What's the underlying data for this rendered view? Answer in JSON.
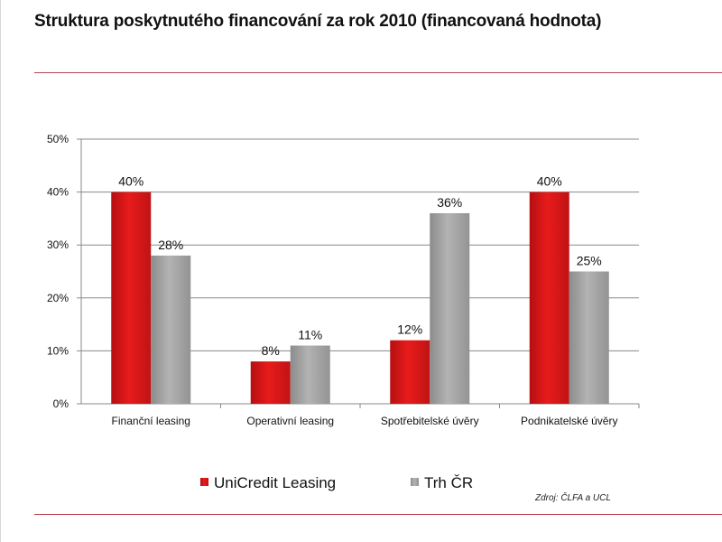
{
  "title": "Struktura poskytnutého financování za rok 2010 (financovaná hodnota)",
  "source": "Zdroj: ČLFA a UCL",
  "colors": {
    "accent_rule": "#b8434f",
    "unicredit_bar": "#e01717",
    "trh_bar": "#a9a9a9"
  },
  "chart_data": {
    "type": "bar",
    "title": "",
    "xlabel": "",
    "ylabel": "",
    "categories": [
      "Finanční leasing",
      "Operativní leasing",
      "Spotřebitelské úvěry",
      "Podnikatelské úvěry"
    ],
    "series": [
      {
        "name": "UniCredit Leasing",
        "color": "#e01717",
        "values": [
          40,
          8,
          12,
          40
        ],
        "labels": [
          "40%",
          "8%",
          "12%",
          "40%"
        ]
      },
      {
        "name": "Trh ČR",
        "color": "#a9a9a9",
        "values": [
          28,
          11,
          36,
          25
        ],
        "labels": [
          "28%",
          "11%",
          "36%",
          "25%"
        ]
      }
    ],
    "ylim": [
      0,
      50
    ],
    "yticks": [
      0,
      10,
      20,
      30,
      40,
      50
    ],
    "ytick_labels": [
      "0%",
      "10%",
      "20%",
      "30%",
      "40%",
      "50%"
    ],
    "grid": true,
    "legend_position": "bottom-left"
  }
}
